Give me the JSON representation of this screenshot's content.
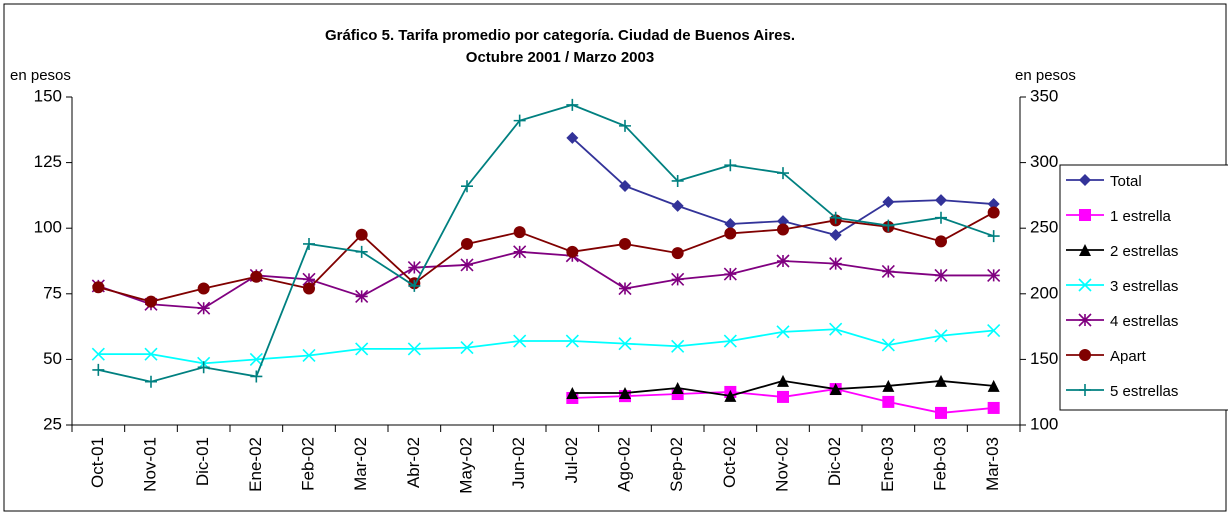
{
  "chart_data": {
    "type": "line",
    "title": "Gráfico 5. Tarifa promedio por categoría. Ciudad de Buenos Aires.",
    "subtitle": "Octubre 2001 / Marzo 2003",
    "y_label": "en pesos",
    "y2_label": "en pesos",
    "categories": [
      "Oct-01",
      "Nov-01",
      "Dic-01",
      "Ene-02",
      "Feb-02",
      "Mar-02",
      "Abr-02",
      "May-02",
      "Jun-02",
      "Jul-02",
      "Ago-02",
      "Sep-02",
      "Oct-02",
      "Nov-02",
      "Dic-02",
      "Ene-03",
      "Feb-03",
      "Mar-03"
    ],
    "ylim": [
      25,
      150
    ],
    "yticks": [
      25,
      50,
      75,
      100,
      125,
      150
    ],
    "y2lim": [
      100,
      350
    ],
    "y2ticks": [
      100,
      150,
      200,
      250,
      300,
      350
    ],
    "grid": false,
    "legend": "right",
    "series": [
      {
        "name": "Total",
        "color": "#333399",
        "marker": "diamond",
        "values": [
          null,
          null,
          null,
          null,
          null,
          null,
          null,
          null,
          null,
          134.4,
          116.1,
          108.5,
          101.6,
          102.7,
          97.4,
          110,
          110.7,
          109.2
        ]
      },
      {
        "name": "1 estrella",
        "color": "#ff00ff",
        "marker": "square",
        "values": [
          null,
          null,
          null,
          null,
          null,
          null,
          null,
          null,
          null,
          35.3,
          36,
          36.8,
          37.6,
          35.7,
          38.7,
          33.8,
          29.6,
          31.5
        ]
      },
      {
        "name": "2 estrellas",
        "color": "#000000",
        "marker": "triangle",
        "values": [
          null,
          null,
          null,
          null,
          null,
          null,
          null,
          null,
          null,
          37.2,
          37.2,
          39.1,
          36.1,
          41.8,
          38.7,
          39.9,
          41.8,
          39.9
        ]
      },
      {
        "name": "3 estrellas",
        "color": "#00ffff",
        "marker": "x",
        "values": [
          52,
          52,
          48.5,
          50,
          51.5,
          54,
          54,
          54.5,
          57,
          57,
          56,
          55,
          57,
          60.5,
          61.5,
          55.5,
          59,
          61
        ]
      },
      {
        "name": "4 estrellas",
        "color": "#800080",
        "marker": "star",
        "values": [
          78,
          71,
          69.5,
          82,
          80.5,
          74,
          85,
          86,
          91,
          89.5,
          77,
          80.5,
          82.5,
          87.5,
          86.5,
          83.5,
          82,
          82
        ]
      },
      {
        "name": "Apart",
        "color": "#800000",
        "marker": "circle",
        "values": [
          77.5,
          72,
          77,
          81.5,
          77,
          97.5,
          79,
          94,
          98.5,
          91,
          94,
          90.5,
          98,
          99.5,
          103,
          100.5,
          95,
          106
        ]
      },
      {
        "name": "5 estrellas",
        "color": "#008080",
        "marker": "plus",
        "axis": "y2",
        "values": [
          142,
          133,
          144,
          137,
          238,
          232,
          206,
          282,
          332,
          344,
          328,
          286,
          298,
          292,
          258,
          252,
          258,
          244
        ]
      }
    ]
  }
}
